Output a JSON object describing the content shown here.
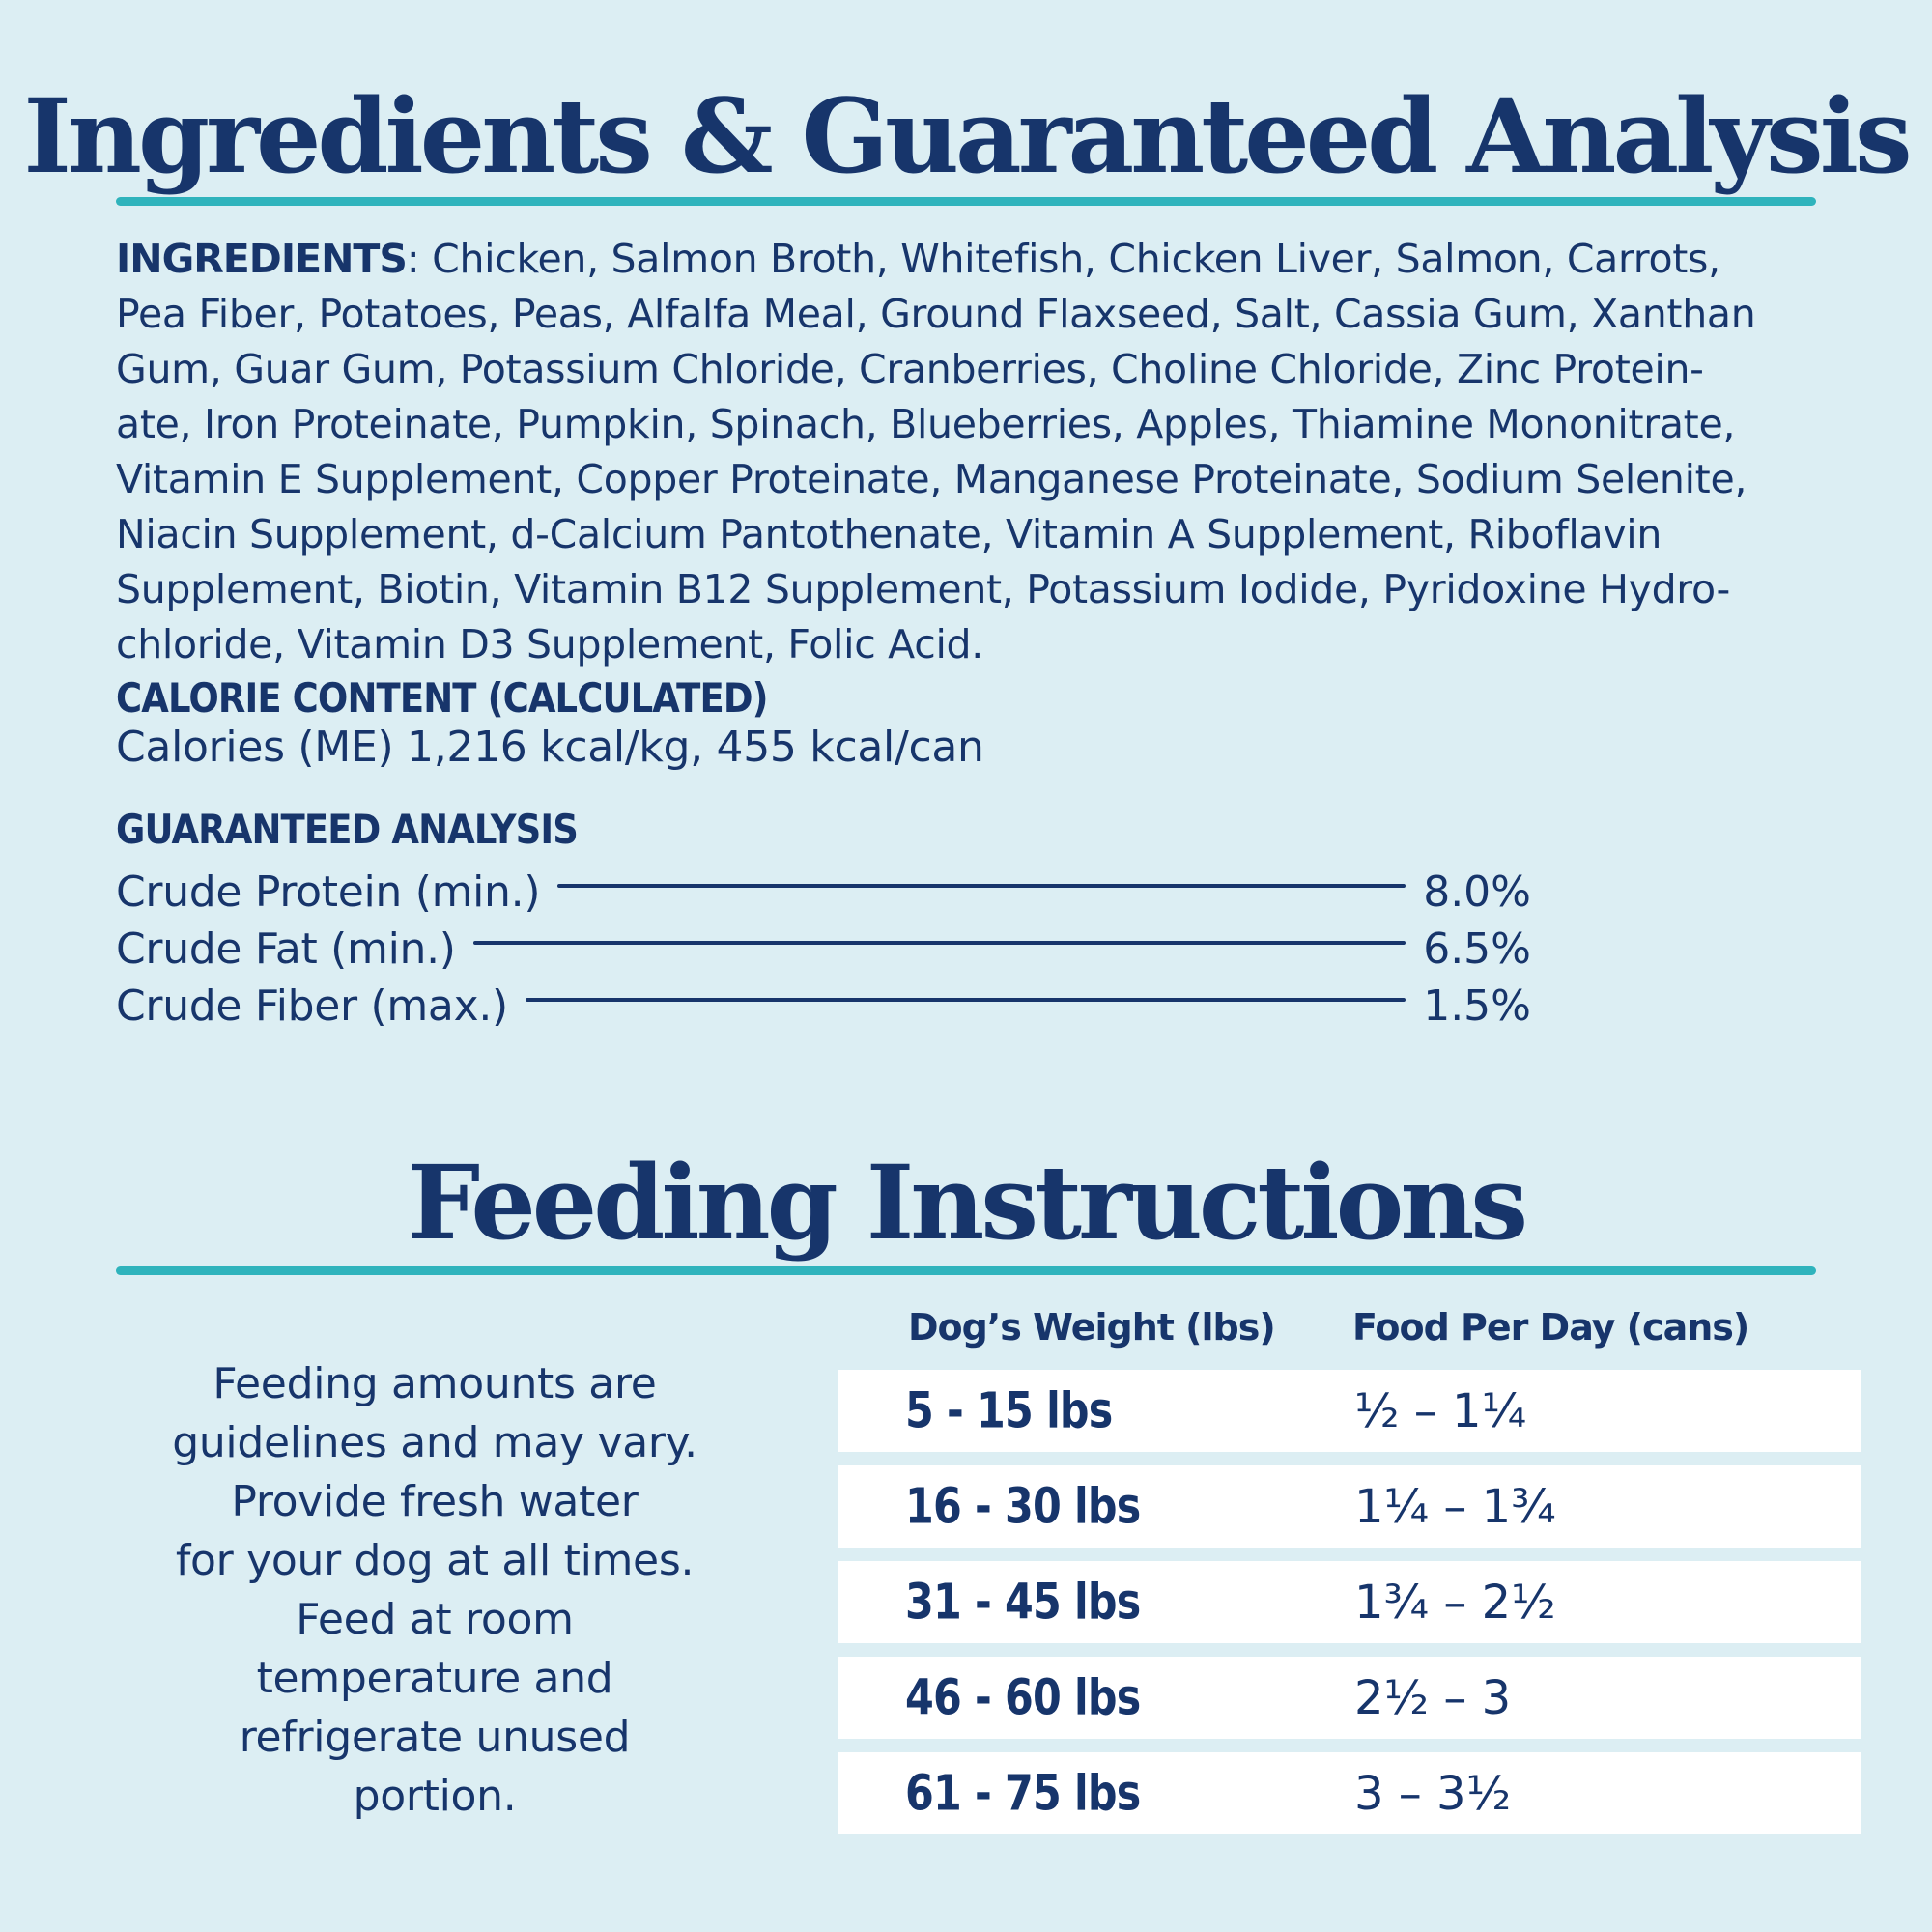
{
  "colors": {
    "background": "#dceef3",
    "navy": "#17356b",
    "teal": "#2fb3bc",
    "row_background": "#ffffff"
  },
  "ingredients_section": {
    "title": "Ingredients & Guaranteed Analysis",
    "ingredients_label": "INGREDIENTS",
    "ingredients_lines": [
      ": Chicken, Salmon Broth, Whitefish, Chicken Liver, Salmon, Carrots,",
      "Pea Fiber, Potatoes, Peas, Alfalfa Meal, Ground Flaxseed, Salt, Cassia Gum, Xanthan",
      "Gum, Guar Gum, Potassium Chloride, Cranberries, Choline Chloride, Zinc Protein-",
      "ate, Iron Proteinate, Pumpkin, Spinach, Blueberries, Apples, Thiamine Mononitrate,",
      "Vitamin E Supplement, Copper Proteinate, Manganese Proteinate, Sodium Selenite,",
      "Niacin Supplement, d-Calcium Pantothenate, Vitamin A Supplement, Riboflavin",
      "Supplement, Biotin, Vitamin B12 Supplement, Potassium Iodide, Pyridoxine Hydro-",
      "chloride, Vitamin D3 Supplement, Folic Acid."
    ],
    "calorie_heading": "CALORIE CONTENT (CALCULATED)",
    "calorie_line": "Calories (ME) 1,216 kcal/kg, 455 kcal/can",
    "analysis_heading": "GUARANTEED ANALYSIS",
    "analysis_rows": [
      {
        "label": "Crude Protein (min.)",
        "value": "8.0%"
      },
      {
        "label": "Crude Fat (min.)",
        "value": "6.5%"
      },
      {
        "label": "Crude Fiber (max.)",
        "value": "1.5%"
      }
    ]
  },
  "feeding_section": {
    "title": "Feeding Instructions",
    "note_lines": [
      "Feeding amounts are",
      "guidelines and may vary.",
      "Provide fresh water",
      "for your dog at all times.",
      "Feed at room",
      "temperature and",
      "refrigerate unused",
      "portion."
    ],
    "table": {
      "col1_header": "Dog’s Weight (lbs)",
      "col2_header": "Food Per Day (cans)",
      "rows": [
        {
          "weight": "5 - 15 lbs",
          "food": "½ – 1¼"
        },
        {
          "weight": "16 - 30 lbs",
          "food": "1¼ – 1¾"
        },
        {
          "weight": "31 - 45 lbs",
          "food": "1¾ – 2½"
        },
        {
          "weight": "46 - 60 lbs",
          "food": "2½ – 3"
        },
        {
          "weight": "61 - 75 lbs",
          "food": "3 – 3½"
        }
      ]
    }
  }
}
